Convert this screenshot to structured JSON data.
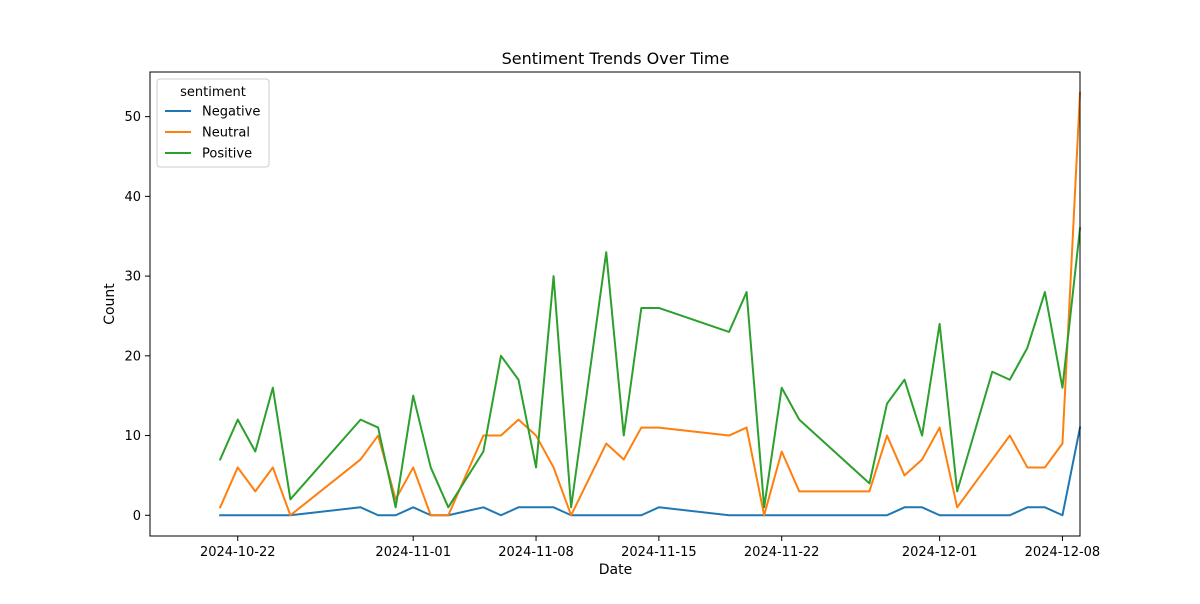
{
  "chart_data": {
    "type": "line",
    "title": "Sentiment Trends Over Time",
    "xlabel": "Date",
    "ylabel": "Count",
    "xlim": [
      "2024-10-17",
      "2024-12-09"
    ],
    "ylim": [
      -2.6,
      55.6
    ],
    "x_ticks": [
      "2024-10-22",
      "2024-11-01",
      "2024-11-08",
      "2024-11-15",
      "2024-11-22",
      "2024-12-01",
      "2024-12-08"
    ],
    "y_ticks": [
      0,
      10,
      20,
      30,
      40,
      50
    ],
    "grid": false,
    "legend": {
      "title": "sentiment",
      "placement": "upper-left"
    },
    "series": [
      {
        "name": "Negative",
        "color": "#1f77b4",
        "points": [
          [
            "2024-10-21",
            0
          ],
          [
            "2024-10-22",
            0
          ],
          [
            "2024-10-23",
            0
          ],
          [
            "2024-10-24",
            0
          ],
          [
            "2024-10-25",
            0
          ],
          [
            "2024-10-29",
            1
          ],
          [
            "2024-10-30",
            0
          ],
          [
            "2024-10-31",
            0
          ],
          [
            "2024-11-01",
            1
          ],
          [
            "2024-11-02",
            0
          ],
          [
            "2024-11-03",
            0
          ],
          [
            "2024-11-05",
            1
          ],
          [
            "2024-11-06",
            0
          ],
          [
            "2024-11-07",
            1
          ],
          [
            "2024-11-08",
            1
          ],
          [
            "2024-11-09",
            1
          ],
          [
            "2024-11-10",
            0
          ],
          [
            "2024-11-12",
            0
          ],
          [
            "2024-11-13",
            0
          ],
          [
            "2024-11-14",
            0
          ],
          [
            "2024-11-15",
            1
          ],
          [
            "2024-11-19",
            0
          ],
          [
            "2024-11-20",
            0
          ],
          [
            "2024-11-21",
            0
          ],
          [
            "2024-11-22",
            0
          ],
          [
            "2024-11-23",
            0
          ],
          [
            "2024-11-27",
            0
          ],
          [
            "2024-11-28",
            0
          ],
          [
            "2024-11-29",
            1
          ],
          [
            "2024-11-30",
            1
          ],
          [
            "2024-12-01",
            0
          ],
          [
            "2024-12-02",
            0
          ],
          [
            "2024-12-04",
            0
          ],
          [
            "2024-12-05",
            0
          ],
          [
            "2024-12-06",
            1
          ],
          [
            "2024-12-07",
            1
          ],
          [
            "2024-12-08",
            0
          ],
          [
            "2024-12-09",
            11
          ]
        ]
      },
      {
        "name": "Neutral",
        "color": "#ff7f0e",
        "points": [
          [
            "2024-10-21",
            1
          ],
          [
            "2024-10-22",
            6
          ],
          [
            "2024-10-23",
            3
          ],
          [
            "2024-10-24",
            6
          ],
          [
            "2024-10-25",
            0
          ],
          [
            "2024-10-29",
            7
          ],
          [
            "2024-10-30",
            10
          ],
          [
            "2024-10-31",
            2
          ],
          [
            "2024-11-01",
            6
          ],
          [
            "2024-11-02",
            0
          ],
          [
            "2024-11-03",
            0
          ],
          [
            "2024-11-05",
            10
          ],
          [
            "2024-11-06",
            10
          ],
          [
            "2024-11-07",
            12
          ],
          [
            "2024-11-08",
            10
          ],
          [
            "2024-11-09",
            6
          ],
          [
            "2024-11-10",
            0
          ],
          [
            "2024-11-12",
            9
          ],
          [
            "2024-11-13",
            7
          ],
          [
            "2024-11-14",
            11
          ],
          [
            "2024-11-15",
            11
          ],
          [
            "2024-11-19",
            10
          ],
          [
            "2024-11-20",
            11
          ],
          [
            "2024-11-21",
            0
          ],
          [
            "2024-11-22",
            8
          ],
          [
            "2024-11-23",
            3
          ],
          [
            "2024-11-27",
            3
          ],
          [
            "2024-11-28",
            10
          ],
          [
            "2024-11-29",
            5
          ],
          [
            "2024-11-30",
            7
          ],
          [
            "2024-12-01",
            11
          ],
          [
            "2024-12-02",
            1
          ],
          [
            "2024-12-05",
            10
          ],
          [
            "2024-12-06",
            6
          ],
          [
            "2024-12-07",
            6
          ],
          [
            "2024-12-08",
            9
          ],
          [
            "2024-12-09",
            53
          ]
        ]
      },
      {
        "name": "Positive",
        "color": "#2ca02c",
        "points": [
          [
            "2024-10-21",
            7
          ],
          [
            "2024-10-22",
            12
          ],
          [
            "2024-10-23",
            8
          ],
          [
            "2024-10-24",
            16
          ],
          [
            "2024-10-25",
            2
          ],
          [
            "2024-10-29",
            12
          ],
          [
            "2024-10-30",
            11
          ],
          [
            "2024-10-31",
            1
          ],
          [
            "2024-11-01",
            15
          ],
          [
            "2024-11-02",
            6
          ],
          [
            "2024-11-03",
            1
          ],
          [
            "2024-11-05",
            8
          ],
          [
            "2024-11-06",
            20
          ],
          [
            "2024-11-07",
            17
          ],
          [
            "2024-11-08",
            6
          ],
          [
            "2024-11-09",
            30
          ],
          [
            "2024-11-10",
            1
          ],
          [
            "2024-11-12",
            33
          ],
          [
            "2024-11-13",
            10
          ],
          [
            "2024-11-14",
            26
          ],
          [
            "2024-11-15",
            26
          ],
          [
            "2024-11-19",
            23
          ],
          [
            "2024-11-20",
            28
          ],
          [
            "2024-11-21",
            1
          ],
          [
            "2024-11-22",
            16
          ],
          [
            "2024-11-23",
            12
          ],
          [
            "2024-11-27",
            4
          ],
          [
            "2024-11-28",
            14
          ],
          [
            "2024-11-29",
            17
          ],
          [
            "2024-11-30",
            10
          ],
          [
            "2024-12-01",
            24
          ],
          [
            "2024-12-02",
            3
          ],
          [
            "2024-12-04",
            18
          ],
          [
            "2024-12-05",
            17
          ],
          [
            "2024-12-06",
            21
          ],
          [
            "2024-12-07",
            28
          ],
          [
            "2024-12-08",
            16
          ],
          [
            "2024-12-09",
            36
          ]
        ]
      }
    ]
  }
}
